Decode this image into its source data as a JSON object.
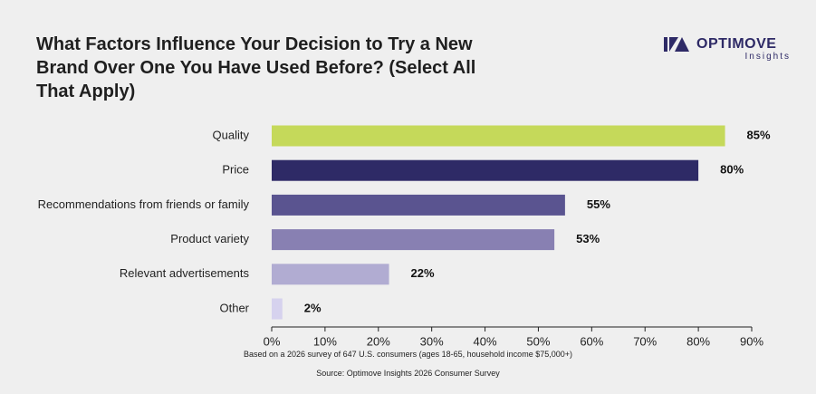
{
  "header": {
    "title": "What Factors Influence Your Decision to Try a New Brand Over One You Have Used Before? (Select All That Apply)"
  },
  "logo": {
    "name": "OPTIMOVE",
    "sub": "Insights",
    "color": "#2e2a66"
  },
  "chart_data": {
    "type": "bar",
    "orientation": "horizontal",
    "categories": [
      "Quality",
      "Price",
      "Recommendations from friends or family",
      "Product variety",
      "Relevant advertisements",
      "Other"
    ],
    "values": [
      85,
      80,
      55,
      53,
      22,
      2
    ],
    "value_labels": [
      "85%",
      "80%",
      "55%",
      "53%",
      "22%",
      "2%"
    ],
    "colors": [
      "#c5d95a",
      "#2e2a66",
      "#5a5490",
      "#8880b2",
      "#b1acd2",
      "#d6d2ee"
    ],
    "xlim": [
      0,
      90
    ],
    "xticks": [
      "0%",
      "10%",
      "20%",
      "30%",
      "40%",
      "50%",
      "60%",
      "70%",
      "80%",
      "90%"
    ],
    "grid": false,
    "legend": "none"
  },
  "footer": {
    "note": "Based on a 2026 survey of 647 U.S. consumers (ages 18-65, household income $75,000+)",
    "source": "Source: Optimove Insights 2026 Consumer Survey"
  }
}
